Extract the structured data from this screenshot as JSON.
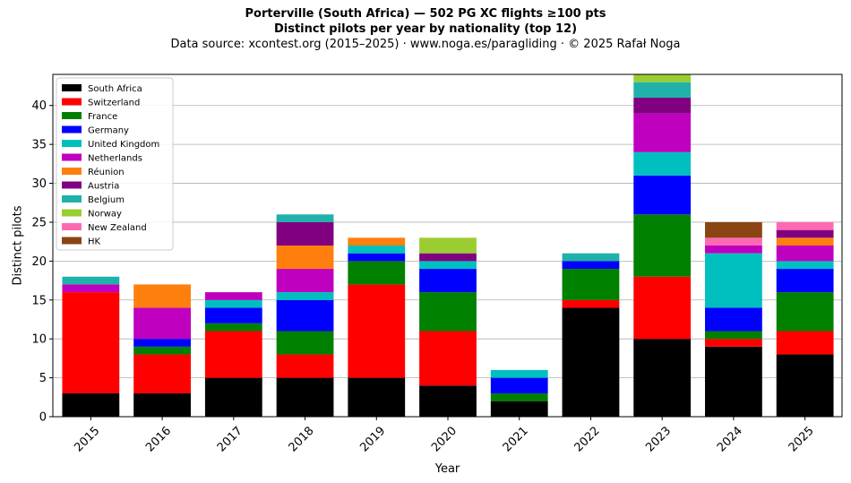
{
  "chart_data": {
    "type": "bar",
    "stacked": true,
    "title": "Porterville (South Africa)  —  502 PG XC flights ≥100 pts",
    "subtitle": "Distinct pilots per year by nationality (top 12)",
    "source": "Data source: xcontest.org (2015–2025)  ·  www.noga.es/paragliding  ·  © 2025 Rafał Noga",
    "xlabel": "Year",
    "ylabel": "Distinct pilots",
    "ylim": [
      0,
      44
    ],
    "yticks": [
      0,
      5,
      10,
      15,
      20,
      25,
      30,
      35,
      40
    ],
    "grid": "horizontal",
    "legend_position": "top-left",
    "categories": [
      "2015",
      "2016",
      "2017",
      "2018",
      "2019",
      "2020",
      "2021",
      "2022",
      "2023",
      "2024",
      "2025"
    ],
    "series": [
      {
        "name": "South Africa",
        "color": "#000000",
        "values": [
          3,
          3,
          5,
          5,
          5,
          4,
          2,
          14,
          10,
          9,
          8
        ]
      },
      {
        "name": "Switzerland",
        "color": "#ff0000",
        "values": [
          13,
          5,
          6,
          3,
          12,
          7,
          0,
          1,
          8,
          1,
          3
        ]
      },
      {
        "name": "France",
        "color": "#008000",
        "values": [
          0,
          1,
          1,
          3,
          3,
          5,
          1,
          4,
          8,
          1,
          5
        ]
      },
      {
        "name": "Germany",
        "color": "#0000ff",
        "values": [
          0,
          1,
          2,
          4,
          1,
          3,
          2,
          1,
          5,
          3,
          3
        ]
      },
      {
        "name": "United Kingdom",
        "color": "#00bfbf",
        "values": [
          0,
          0,
          1,
          1,
          1,
          1,
          1,
          0,
          3,
          7,
          1
        ]
      },
      {
        "name": "Netherlands",
        "color": "#bf00bf",
        "values": [
          1,
          4,
          1,
          3,
          0,
          0,
          0,
          0,
          5,
          1,
          2
        ]
      },
      {
        "name": "Réunion",
        "color": "#ff7f0e",
        "values": [
          0,
          3,
          0,
          3,
          1,
          0,
          0,
          0,
          0,
          0,
          1
        ]
      },
      {
        "name": "Austria",
        "color": "#800080",
        "values": [
          0,
          0,
          0,
          3,
          0,
          1,
          0,
          0,
          2,
          0,
          1
        ]
      },
      {
        "name": "Belgium",
        "color": "#20b2aa",
        "values": [
          1,
          0,
          0,
          1,
          0,
          0,
          0,
          1,
          2,
          0,
          0
        ]
      },
      {
        "name": "Norway",
        "color": "#9acd32",
        "values": [
          0,
          0,
          0,
          0,
          0,
          2,
          0,
          0,
          1,
          0,
          0
        ]
      },
      {
        "name": "New Zealand",
        "color": "#ff69b4",
        "values": [
          0,
          0,
          0,
          0,
          0,
          0,
          0,
          0,
          0,
          1,
          1
        ]
      },
      {
        "name": "HK",
        "color": "#8b4513",
        "values": [
          0,
          0,
          0,
          0,
          0,
          0,
          0,
          0,
          0,
          2,
          0
        ]
      }
    ]
  }
}
